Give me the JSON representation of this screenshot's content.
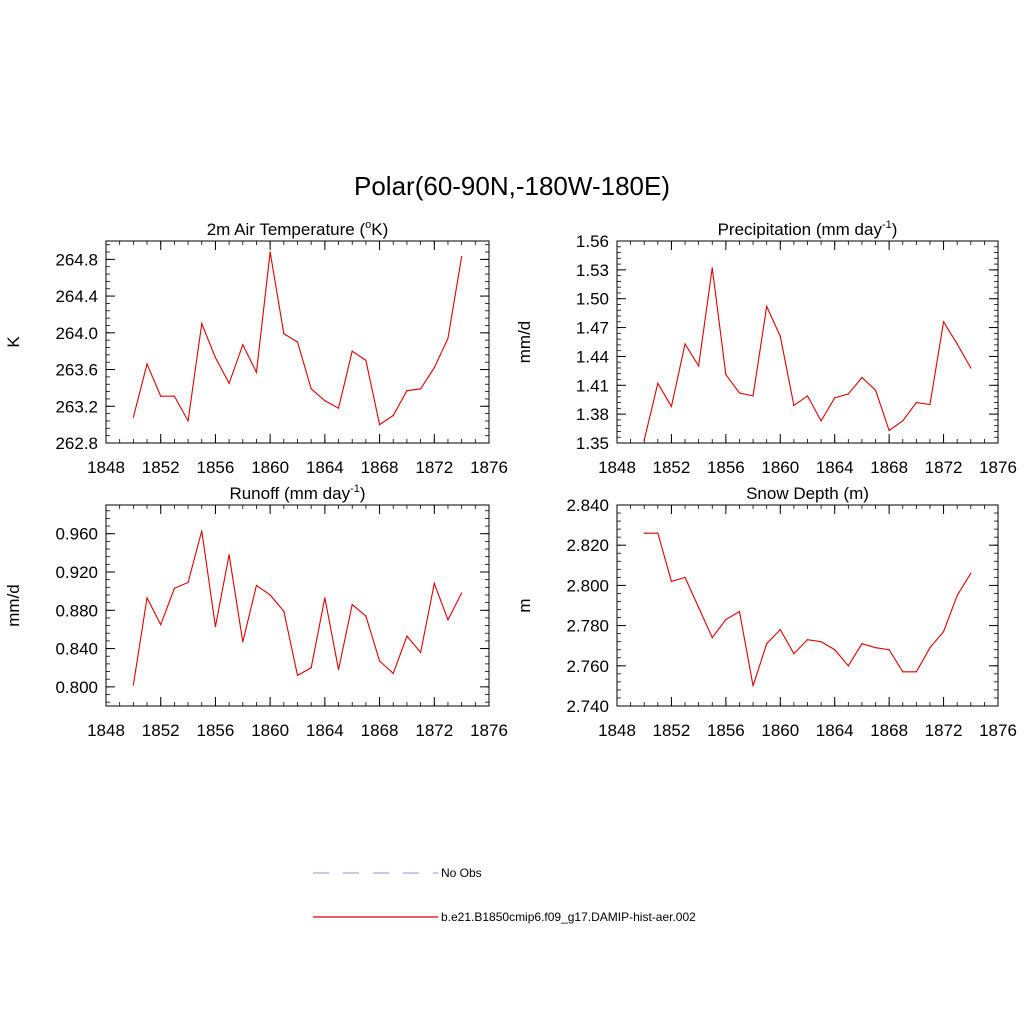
{
  "figure": {
    "title": "Polar(60-90N,-180W-180E)"
  },
  "colors": {
    "model_line": "#e00000",
    "obs_line": "#a8a8e8",
    "axis": "#000000"
  },
  "legend": {
    "placement": "bottom-center",
    "entries": [
      {
        "label": "No Obs",
        "style": "dashed",
        "color": "#a8a8e8"
      },
      {
        "label": "b.e21.B1850cmip6.f09_g17.DAMIP-hist-aer.002",
        "style": "solid",
        "color": "#e00000"
      }
    ]
  },
  "chart_data": [
    {
      "type": "line",
      "title": "2m Air Temperature (",
      "title_sup": "o",
      "title_after": "K)",
      "ylabel": "K",
      "xlim": [
        1848,
        1876
      ],
      "ylim": [
        262.8,
        265.0
      ],
      "xticks": [
        "1848",
        "1852",
        "1856",
        "1860",
        "1864",
        "1868",
        "1872",
        "1876"
      ],
      "yticks": [
        "262.8",
        "263.2",
        "263.6",
        "264.0",
        "264.4",
        "264.8"
      ],
      "x": [
        1850,
        1851,
        1852,
        1853,
        1854,
        1855,
        1856,
        1857,
        1858,
        1859,
        1860,
        1861,
        1862,
        1863,
        1864,
        1865,
        1866,
        1867,
        1868,
        1869,
        1870,
        1871,
        1872,
        1873,
        1874
      ],
      "series": [
        {
          "name": "b.e21.B1850cmip6.f09_g17.DAMIP-hist-aer.002",
          "values": [
            263.08,
            263.66,
            263.31,
            263.31,
            263.04,
            264.1,
            263.73,
            263.45,
            263.87,
            263.57,
            264.88,
            263.99,
            263.9,
            263.39,
            263.26,
            263.18,
            263.8,
            263.7,
            263.0,
            263.1,
            263.37,
            263.39,
            263.62,
            263.94,
            264.83
          ]
        }
      ]
    },
    {
      "type": "line",
      "title": "Precipitation (mm day",
      "title_sup": "-1",
      "title_after": ")",
      "ylabel": "mm/d",
      "xlim": [
        1848,
        1876
      ],
      "ylim": [
        1.35,
        1.56
      ],
      "xticks": [
        "1848",
        "1852",
        "1856",
        "1860",
        "1864",
        "1868",
        "1872",
        "1876"
      ],
      "yticks": [
        "1.35",
        "1.38",
        "1.41",
        "1.44",
        "1.47",
        "1.50",
        "1.53",
        "1.56"
      ],
      "x": [
        1850,
        1851,
        1852,
        1853,
        1854,
        1855,
        1856,
        1857,
        1858,
        1859,
        1860,
        1861,
        1862,
        1863,
        1864,
        1865,
        1866,
        1867,
        1868,
        1869,
        1870,
        1871,
        1872,
        1873,
        1874
      ],
      "series": [
        {
          "name": "b.e21.B1850cmip6.f09_g17.DAMIP-hist-aer.002",
          "values": [
            1.353,
            1.412,
            1.388,
            1.453,
            1.43,
            1.532,
            1.421,
            1.402,
            1.399,
            1.492,
            1.461,
            1.389,
            1.399,
            1.373,
            1.397,
            1.401,
            1.418,
            1.405,
            1.363,
            1.373,
            1.392,
            1.39,
            1.476,
            1.453,
            1.428
          ]
        }
      ]
    },
    {
      "type": "line",
      "title": "Runoff (mm day",
      "title_sup": "-1",
      "title_after": ")",
      "ylabel": "mm/d",
      "xlim": [
        1848,
        1876
      ],
      "ylim": [
        0.78,
        0.99
      ],
      "xticks": [
        "1848",
        "1852",
        "1856",
        "1860",
        "1864",
        "1868",
        "1872",
        "1876"
      ],
      "yticks": [
        "0.800",
        "0.840",
        "0.880",
        "0.920",
        "0.960"
      ],
      "x": [
        1850,
        1851,
        1852,
        1853,
        1854,
        1855,
        1856,
        1857,
        1858,
        1859,
        1860,
        1861,
        1862,
        1863,
        1864,
        1865,
        1866,
        1867,
        1868,
        1869,
        1870,
        1871,
        1872,
        1873,
        1874
      ],
      "series": [
        {
          "name": "b.e21.B1850cmip6.f09_g17.DAMIP-hist-aer.002",
          "values": [
            0.802,
            0.893,
            0.865,
            0.903,
            0.909,
            0.963,
            0.863,
            0.938,
            0.847,
            0.906,
            0.896,
            0.879,
            0.812,
            0.82,
            0.893,
            0.818,
            0.886,
            0.874,
            0.827,
            0.814,
            0.853,
            0.836,
            0.908,
            0.87,
            0.898
          ]
        }
      ]
    },
    {
      "type": "line",
      "title": "Snow Depth (m)",
      "title_sup": "",
      "title_after": "",
      "ylabel": "m",
      "xlim": [
        1848,
        1876
      ],
      "ylim": [
        2.74,
        2.84
      ],
      "xticks": [
        "1848",
        "1852",
        "1856",
        "1860",
        "1864",
        "1868",
        "1872",
        "1876"
      ],
      "yticks": [
        "2.740",
        "2.760",
        "2.780",
        "2.800",
        "2.820",
        "2.840"
      ],
      "x": [
        1850,
        1851,
        1852,
        1853,
        1854,
        1855,
        1856,
        1857,
        1858,
        1859,
        1860,
        1861,
        1862,
        1863,
        1864,
        1865,
        1866,
        1867,
        1868,
        1869,
        1870,
        1871,
        1872,
        1873,
        1874
      ],
      "series": [
        {
          "name": "b.e21.B1850cmip6.f09_g17.DAMIP-hist-aer.002",
          "values": [
            2.826,
            2.826,
            2.802,
            2.804,
            2.789,
            2.774,
            2.783,
            2.787,
            2.75,
            2.771,
            2.778,
            2.766,
            2.773,
            2.772,
            2.768,
            2.76,
            2.771,
            2.769,
            2.768,
            2.757,
            2.757,
            2.769,
            2.777,
            2.795,
            2.806
          ]
        }
      ]
    }
  ]
}
